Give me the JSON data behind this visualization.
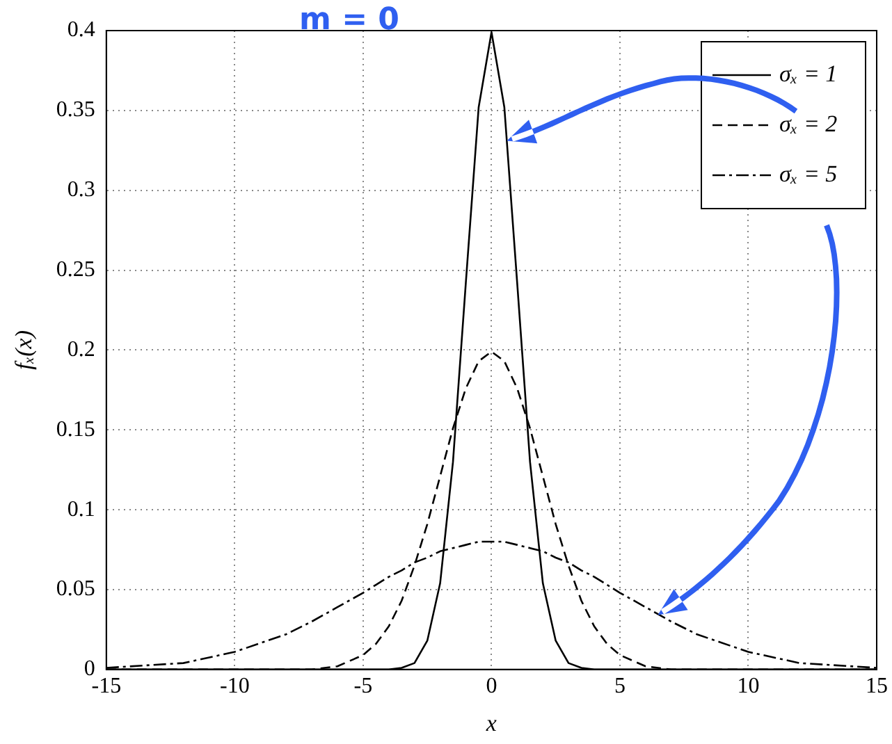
{
  "chart_data": {
    "type": "line",
    "xlabel": "x",
    "ylabel": "fₓ(x)",
    "annotations": [
      "m = 0"
    ],
    "x": [
      -15,
      -12,
      -10,
      -8,
      -7,
      -6,
      -5,
      -4.5,
      -4,
      -3.5,
      -3,
      -2.5,
      -2,
      -1.5,
      -1,
      -0.5,
      0,
      0.5,
      1,
      1.5,
      2,
      2.5,
      3,
      3.5,
      4,
      4.5,
      5,
      6,
      7,
      8,
      10,
      12,
      15
    ],
    "series": [
      {
        "name": "σₓ = 1",
        "color": "#000000",
        "line_style": "solid",
        "values": [
          0,
          0,
          0,
          0,
          0,
          0,
          0,
          0,
          0,
          0.001,
          0.004,
          0.018,
          0.054,
          0.13,
          0.242,
          0.352,
          0.399,
          0.352,
          0.242,
          0.13,
          0.054,
          0.018,
          0.004,
          0.001,
          0,
          0,
          0,
          0,
          0,
          0,
          0,
          0,
          0
        ]
      },
      {
        "name": "σₓ = 2",
        "color": "#000000",
        "line_style": "dashed",
        "values": [
          0,
          0,
          0,
          0,
          0,
          0.002,
          0.009,
          0.016,
          0.027,
          0.043,
          0.065,
          0.091,
          0.121,
          0.151,
          0.176,
          0.193,
          0.199,
          0.193,
          0.176,
          0.151,
          0.121,
          0.091,
          0.065,
          0.043,
          0.027,
          0.016,
          0.009,
          0.002,
          0,
          0,
          0,
          0,
          0
        ]
      },
      {
        "name": "σₓ = 5",
        "color": "#000000",
        "line_style": "dashdot",
        "values": [
          0.001,
          0.004,
          0.011,
          0.022,
          0.03,
          0.039,
          0.048,
          0.053,
          0.058,
          0.062,
          0.067,
          0.07,
          0.074,
          0.076,
          0.078,
          0.08,
          0.08,
          0.08,
          0.078,
          0.076,
          0.074,
          0.07,
          0.067,
          0.062,
          0.058,
          0.053,
          0.048,
          0.039,
          0.03,
          0.022,
          0.011,
          0.004,
          0.001
        ]
      }
    ],
    "xlim": [
      -15,
      15
    ],
    "xticks": [
      -15,
      -10,
      -5,
      0,
      5,
      10,
      15
    ],
    "ylim": [
      0,
      0.4
    ],
    "yticks": [
      0,
      0.05,
      0.1,
      0.15,
      0.2,
      0.25,
      0.3,
      0.35,
      0.4
    ],
    "grid": true,
    "legend": "top right",
    "marker": "none"
  }
}
